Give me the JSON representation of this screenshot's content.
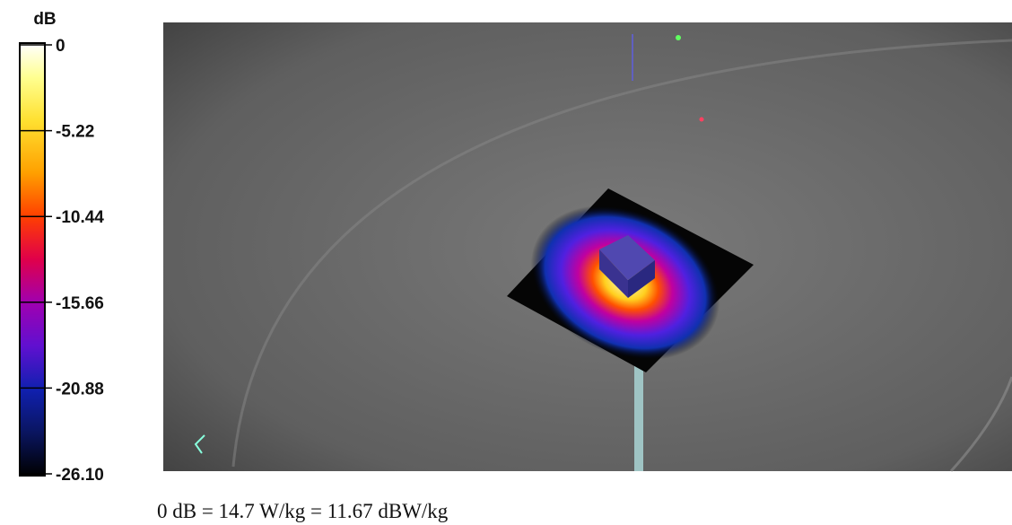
{
  "colorbar": {
    "label": "dB",
    "lim": [
      -26.1,
      0
    ],
    "ticks": [
      0,
      -5.22,
      -10.44,
      -15.66,
      -20.88,
      {
        "value": -26.1,
        "label": "-26.10"
      }
    ]
  },
  "caption": "0 dB = 14.7 W/kg = 11.67 dBW/kg"
}
